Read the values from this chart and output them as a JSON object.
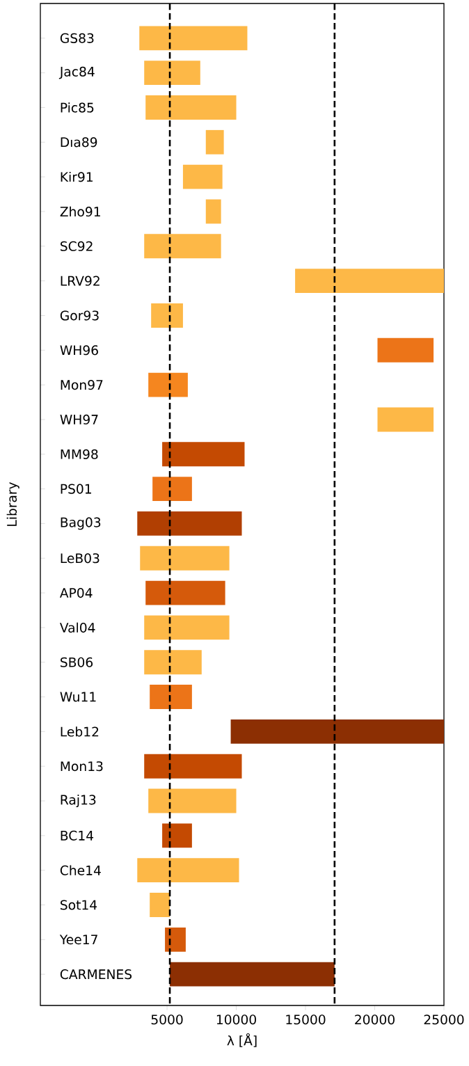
{
  "chart_data": {
    "type": "bar",
    "orientation": "horizontal",
    "xlabel": "λ [Å]",
    "ylabel": "Library",
    "categories": [
      "GS83",
      "Jac84",
      "Pic85",
      "Dıa89",
      "Kir91",
      "Zho91",
      "SC92",
      "LRV92",
      "Gor93",
      "WH96",
      "Mon97",
      "WH97",
      "MM98",
      "PS01",
      "Bag03",
      "LeB03",
      "AP04",
      "Val04",
      "SB06",
      "Wu11",
      "Leb12",
      "Mon13",
      "Raj13",
      "BC14",
      "Che14",
      "Sot14",
      "Yee17",
      "CARMENES"
    ],
    "base": [
      3000,
      3350,
      3450,
      7800,
      6150,
      7800,
      3350,
      14250,
      3850,
      20200,
      3650,
      20200,
      4650,
      3950,
      2850,
      3050,
      3450,
      3350,
      3350,
      3750,
      9600,
      3350,
      3650,
      4650,
      2850,
      3750,
      4850,
      5200
    ],
    "values": [
      7800,
      4050,
      6550,
      1300,
      2850,
      1100,
      5550,
      10750,
      2300,
      4050,
      2850,
      4050,
      5950,
      2850,
      7550,
      6450,
      5750,
      6150,
      4150,
      3050,
      15400,
      7050,
      6350,
      2150,
      7350,
      1450,
      1500,
      11900
    ],
    "colors": [
      "#fdb847",
      "#fdb847",
      "#fdb847",
      "#fdb847",
      "#fdb847",
      "#fdb847",
      "#fdb847",
      "#fdb847",
      "#fdb847",
      "#ec7418",
      "#f5861f",
      "#fdb847",
      "#c44a02",
      "#ec7418",
      "#b13f02",
      "#fdb847",
      "#d55a0b",
      "#fdb847",
      "#fdb847",
      "#ec7418",
      "#8c2f03",
      "#c44a02",
      "#fdb847",
      "#c44a02",
      "#fdb847",
      "#fdb847",
      "#d55a0b",
      "#8c2f03"
    ],
    "xlim": [
      -4150,
      25000
    ],
    "xticks": [
      5000,
      10000,
      15000,
      20000,
      25000
    ],
    "ref_lines": [
      {
        "axis": "x",
        "value": 5200,
        "color": "#000000",
        "line_style": "dashed"
      },
      {
        "axis": "x",
        "value": 17100,
        "color": "#000000",
        "line_style": "dashed"
      }
    ]
  }
}
